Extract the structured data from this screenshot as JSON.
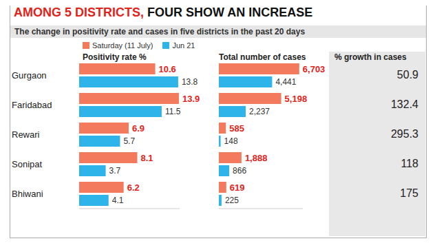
{
  "title": "AMONG 5 DISTRICTS, FOUR SHOW AN INCREASE",
  "subtitle": "The change in positivity rate and cases in five districts in the past 20 days",
  "chart_data": [
    {
      "type": "bar",
      "orientation": "horizontal",
      "title": "Positivity rate %",
      "categories": [
        "Gurgaon",
        "Faridabad",
        "Rewari",
        "Sonipat",
        "Bhiwani"
      ],
      "series": [
        {
          "name": "Saturday (11 July)",
          "color": "#f47a5e",
          "values": [
            10.6,
            13.9,
            6.9,
            8.1,
            6.2
          ]
        },
        {
          "name": "Jun 21",
          "color": "#2fb4e9",
          "values": [
            13.8,
            11.5,
            5.7,
            3.7,
            4.1
          ]
        }
      ],
      "xlim": [
        0,
        14
      ],
      "data_labels": true,
      "tick_labels": "y",
      "legend": "top left"
    },
    {
      "type": "bar",
      "orientation": "horizontal",
      "title": "Total number of cases",
      "categories": [
        "Gurgaon",
        "Faridabad",
        "Rewari",
        "Sonipat",
        "Bhiwani"
      ],
      "series": [
        {
          "name": "Saturday (11 July)",
          "color": "#f47a5e",
          "values": [
            6703,
            5198,
            585,
            1888,
            619
          ],
          "value_labels": [
            "6,703",
            "5,198",
            "585",
            "1,888",
            "619"
          ]
        },
        {
          "name": "Jun 21",
          "color": "#2fb4e9",
          "values": [
            4441,
            2237,
            148,
            866,
            225
          ],
          "value_labels": [
            "4,441",
            "2,237",
            "148",
            "866",
            "225"
          ]
        }
      ],
      "xlim": [
        0,
        7000
      ],
      "data_labels": true,
      "tick_labels": false
    },
    {
      "type": "table",
      "title": "% growth in cases",
      "categories": [
        "Gurgaon",
        "Faridabad",
        "Rewari",
        "Sonipat",
        "Bhiwani"
      ],
      "values": [
        50.9,
        132.4,
        295.3,
        118,
        175
      ]
    }
  ]
}
